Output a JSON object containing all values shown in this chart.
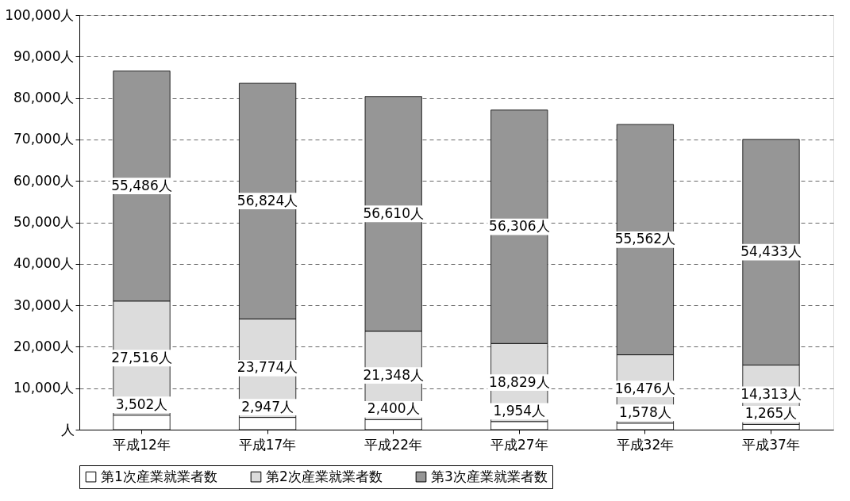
{
  "chart_data": {
    "type": "bar",
    "stacked": true,
    "categories": [
      "平成12年",
      "平成17年",
      "平成22年",
      "平成27年",
      "平成32年",
      "平成37年"
    ],
    "series": [
      {
        "name": "第1次産業就業者数",
        "color": "#ffffff",
        "values": [
          3502,
          2947,
          2400,
          1954,
          1578,
          1265
        ],
        "value_labels": [
          "3,502人",
          "2,947人",
          "2,400人",
          "1,954人",
          "1,578人",
          "1,265人"
        ]
      },
      {
        "name": "第2次産業就業者数",
        "color": "#dcdcdc",
        "values": [
          27516,
          23774,
          21348,
          18829,
          16476,
          14313
        ],
        "value_labels": [
          "27,516人",
          "23,774人",
          "21,348人",
          "18,829人",
          "16,476人",
          "14,313人"
        ]
      },
      {
        "name": "第3次産業就業者数",
        "color": "#969696",
        "values": [
          55486,
          56824,
          56610,
          56306,
          55562,
          54433
        ],
        "value_labels": [
          "55,486人",
          "56,824人",
          "56,610人",
          "56,306人",
          "55,562人",
          "54,433人"
        ]
      }
    ],
    "ylim": [
      0,
      100000
    ],
    "yticks": [
      {
        "value": 0,
        "label": "人"
      },
      {
        "value": 10000,
        "label": "10,000人"
      },
      {
        "value": 20000,
        "label": "20,000人"
      },
      {
        "value": 30000,
        "label": "30,000人"
      },
      {
        "value": 40000,
        "label": "40,000人"
      },
      {
        "value": 50000,
        "label": "50,000人"
      },
      {
        "value": 60000,
        "label": "60,000人"
      },
      {
        "value": 70000,
        "label": "70,000人"
      },
      {
        "value": 80000,
        "label": "80,000人"
      },
      {
        "value": 90000,
        "label": "90,000人"
      },
      {
        "value": 100000,
        "label": "100,000人"
      }
    ],
    "grid": "y",
    "legend": "bottom"
  }
}
